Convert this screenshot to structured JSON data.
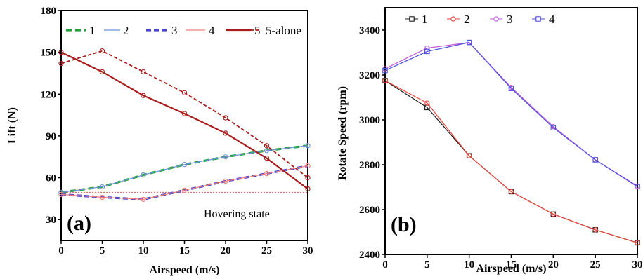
{
  "chart_data": [
    {
      "type": "line",
      "panel_label": "(a)",
      "xlabel": "Airspeed (m/s)",
      "ylabel": "Lift (N)",
      "xlim": [
        0,
        30
      ],
      "ylim": [
        15,
        180
      ],
      "xticks": [
        "0",
        "5",
        "10",
        "15",
        "20",
        "25",
        "30"
      ],
      "yticks": [
        "30",
        "60",
        "90",
        "120",
        "150",
        "180"
      ],
      "grid": false,
      "legend_position": "top",
      "annotation": "Hovering state",
      "reference_line": {
        "y": 49.5,
        "color": "#e8584f"
      },
      "x": [
        0,
        5,
        10,
        15,
        20,
        25,
        30
      ],
      "series": [
        {
          "name": "1",
          "color": "#22a33a",
          "dash": "8,5",
          "width": 3.2,
          "marker": "none",
          "values": [
            49.5,
            53.5,
            62,
            69.5,
            75,
            79.5,
            83
          ]
        },
        {
          "name": "2",
          "color": "#6d8fd6",
          "dash": "",
          "width": 1.2,
          "marker": "circle",
          "values": [
            49.5,
            53.5,
            62,
            69.5,
            75,
            79.5,
            83
          ]
        },
        {
          "name": "3",
          "color": "#4a45d0",
          "dash": "7,4",
          "width": 3.2,
          "marker": "none",
          "values": [
            48,
            46,
            44.5,
            51,
            57.5,
            63,
            68.5
          ]
        },
        {
          "name": "4",
          "color": "#f07f7a",
          "dash": "",
          "width": 1.2,
          "marker": "circle",
          "values": [
            48,
            46,
            44.5,
            51,
            57.5,
            63,
            68.5
          ]
        },
        {
          "name": "5",
          "color": "#a81c1c",
          "dash": "",
          "width": 2.2,
          "marker": "circle",
          "values": [
            150,
            136,
            119,
            106,
            92,
            74,
            52
          ]
        },
        {
          "name": "5-alone",
          "color": "#a81c1c",
          "dash": "5,3",
          "width": 1.8,
          "marker": "circle",
          "values": [
            142,
            151,
            136,
            121,
            103,
            83,
            60
          ]
        }
      ]
    },
    {
      "type": "line",
      "panel_label": "(b)",
      "xlabel": "Airspeed (m/s)",
      "ylabel": "Rotate Speed (rpm)",
      "xlim": [
        0,
        30
      ],
      "ylim": [
        2400,
        3500
      ],
      "xticks": [
        "0",
        "5",
        "10",
        "15",
        "20",
        "25",
        "30"
      ],
      "yticks": [
        "2400",
        "2600",
        "2800",
        "3000",
        "3200",
        "3400"
      ],
      "grid": false,
      "legend_position": "top-left",
      "x": [
        0,
        5,
        10,
        15,
        20,
        25,
        30
      ],
      "series": [
        {
          "name": "1",
          "color": "#1a1a1a",
          "marker": "square",
          "values": [
            3175,
            3055,
            2840,
            2680,
            2580,
            2510,
            2452
          ]
        },
        {
          "name": "2",
          "color": "#e8453c",
          "marker": "circle",
          "values": [
            3175,
            3075,
            2840,
            2680,
            2580,
            2510,
            2452
          ]
        },
        {
          "name": "3",
          "color": "#c25ad6",
          "marker": "circle",
          "values": [
            3228,
            3320,
            3345,
            3145,
            2970,
            2822,
            2705
          ]
        },
        {
          "name": "4",
          "color": "#4d4ed8",
          "marker": "square",
          "values": [
            3220,
            3305,
            3345,
            3140,
            2965,
            2822,
            2702
          ]
        }
      ]
    }
  ]
}
